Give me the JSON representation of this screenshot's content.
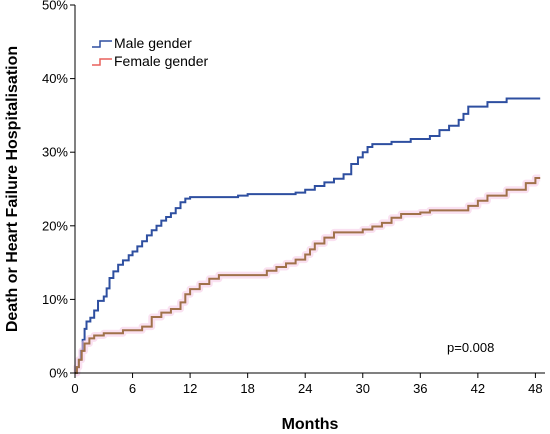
{
  "chart_data": {
    "type": "line",
    "xlabel": "Months",
    "ylabel": "Death or Heart Failure Hospitalisation",
    "xlim": [
      0,
      49
    ],
    "ylim": [
      0,
      50
    ],
    "x_ticks": [
      "0",
      "6",
      "12",
      "18",
      "24",
      "30",
      "36",
      "42",
      "48"
    ],
    "y_ticks": [
      "0%",
      "10%",
      "20%",
      "30%",
      "40%",
      "50%"
    ],
    "legend_position": "top-left",
    "annotation": "p=0.008",
    "series": [
      {
        "name": "Male gender",
        "color": "#2e4fa0",
        "step": true,
        "points": [
          [
            0,
            0
          ],
          [
            0.2,
            0.8
          ],
          [
            0.4,
            1.8
          ],
          [
            0.6,
            3
          ],
          [
            0.8,
            4.5
          ],
          [
            1,
            6
          ],
          [
            1.2,
            7
          ],
          [
            1.6,
            7.5
          ],
          [
            2,
            8.5
          ],
          [
            2.4,
            9.8
          ],
          [
            3,
            10.4
          ],
          [
            3.3,
            11.5
          ],
          [
            3.6,
            12.9
          ],
          [
            4,
            13.8
          ],
          [
            4.5,
            14.7
          ],
          [
            5,
            15.3
          ],
          [
            5.6,
            16
          ],
          [
            6,
            16.5
          ],
          [
            6.5,
            17.2
          ],
          [
            7,
            17.9
          ],
          [
            7.5,
            18.7
          ],
          [
            8,
            19.4
          ],
          [
            8.5,
            20
          ],
          [
            9,
            20.7
          ],
          [
            9.5,
            21.2
          ],
          [
            10,
            21.7
          ],
          [
            10.5,
            22.4
          ],
          [
            11,
            23.2
          ],
          [
            11.5,
            23.7
          ],
          [
            12,
            23.9
          ],
          [
            17,
            24.1
          ],
          [
            18,
            24.3
          ],
          [
            23,
            24.5
          ],
          [
            24,
            24.9
          ],
          [
            25,
            25.4
          ],
          [
            26,
            25.9
          ],
          [
            27,
            26.4
          ],
          [
            28,
            27
          ],
          [
            28.8,
            28.4
          ],
          [
            29.5,
            29.3
          ],
          [
            30,
            30
          ],
          [
            30.5,
            30.7
          ],
          [
            31,
            31.1
          ],
          [
            33,
            31.4
          ],
          [
            35,
            31.8
          ],
          [
            37,
            32.2
          ],
          [
            38,
            33
          ],
          [
            39,
            33.6
          ],
          [
            40,
            34.4
          ],
          [
            40.5,
            35.2
          ],
          [
            41,
            36.2
          ],
          [
            43,
            36.8
          ],
          [
            45,
            37.3
          ],
          [
            48.5,
            37.3
          ]
        ]
      },
      {
        "name": "Female gender",
        "color": "#e8615c",
        "step": true,
        "points": [
          [
            0,
            0
          ],
          [
            0.2,
            0.8
          ],
          [
            0.4,
            1.8
          ],
          [
            0.7,
            3
          ],
          [
            1,
            4
          ],
          [
            1.5,
            4.7
          ],
          [
            2,
            5.1
          ],
          [
            3,
            5.4
          ],
          [
            5,
            5.8
          ],
          [
            7,
            6.3
          ],
          [
            8,
            7.6
          ],
          [
            9,
            8.2
          ],
          [
            10,
            8.7
          ],
          [
            11,
            9.6
          ],
          [
            11.5,
            10.7
          ],
          [
            12,
            11.4
          ],
          [
            13,
            12.1
          ],
          [
            14,
            12.8
          ],
          [
            15,
            13.3
          ],
          [
            20,
            13.9
          ],
          [
            21,
            14.4
          ],
          [
            22,
            14.9
          ],
          [
            23,
            15.4
          ],
          [
            24,
            16.1
          ],
          [
            24.5,
            16.8
          ],
          [
            25,
            17.6
          ],
          [
            26,
            18.4
          ],
          [
            27,
            19.1
          ],
          [
            30,
            19.5
          ],
          [
            31,
            19.9
          ],
          [
            32,
            20.4
          ],
          [
            33,
            21.1
          ],
          [
            34,
            21.6
          ],
          [
            36,
            21.8
          ],
          [
            37,
            22.1
          ],
          [
            41,
            22.7
          ],
          [
            42,
            23.4
          ],
          [
            43,
            24.1
          ],
          [
            45,
            24.9
          ],
          [
            47,
            25.8
          ],
          [
            48,
            26.5
          ],
          [
            48.5,
            26.5
          ]
        ]
      }
    ]
  }
}
